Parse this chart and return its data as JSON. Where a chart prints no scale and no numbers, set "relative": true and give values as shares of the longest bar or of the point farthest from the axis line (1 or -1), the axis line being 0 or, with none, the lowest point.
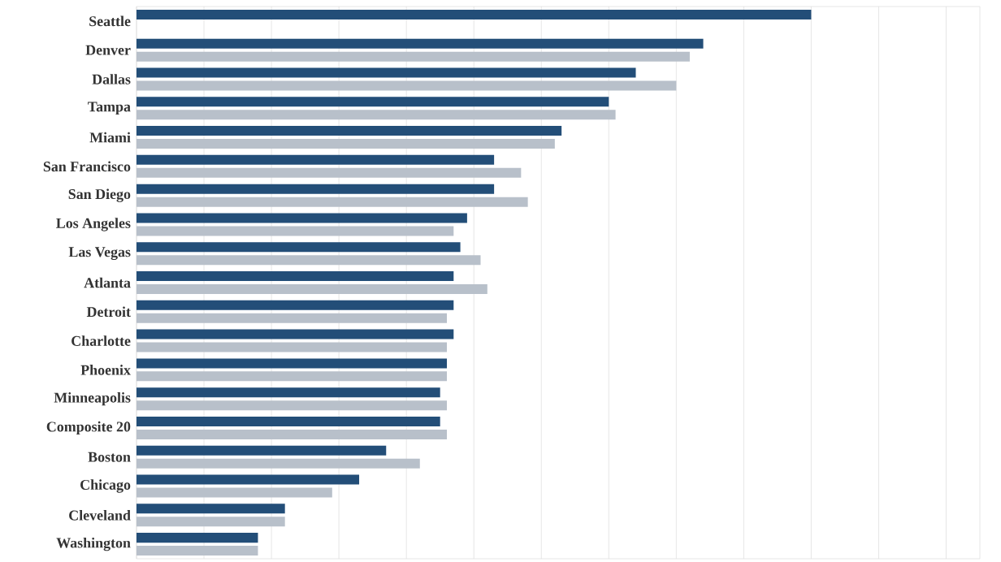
{
  "chart_data": {
    "type": "bar",
    "orientation": "horizontal",
    "relative": true,
    "grid": "x",
    "categories": [
      "Seattle",
      "Denver",
      "Dallas",
      "Tampa",
      "Miami",
      "San Francisco",
      "San Diego",
      "Los Angeles",
      "Las Vegas",
      "Atlanta",
      "Detroit",
      "Charlotte",
      "Phoenix",
      "Minneapolis",
      "Composite 20",
      "Boston",
      "Chicago",
      "Cleveland",
      "Washington"
    ],
    "series": [
      {
        "color": "#b8c0ca",
        "values": [
          null,
          0.82,
          0.8,
          0.71,
          0.62,
          0.57,
          0.58,
          0.47,
          0.51,
          0.52,
          0.46,
          0.46,
          0.46,
          0.46,
          0.46,
          0.42,
          0.29,
          0.22,
          0.18
        ]
      },
      {
        "color": "#234e78",
        "values": [
          1,
          0.84,
          0.74,
          0.7,
          0.63,
          0.53,
          0.53,
          0.49,
          0.48,
          0.47,
          0.47,
          0.47,
          0.46,
          0.45,
          0.45,
          0.37,
          0.33,
          0.22,
          0.18
        ]
      }
    ]
  }
}
